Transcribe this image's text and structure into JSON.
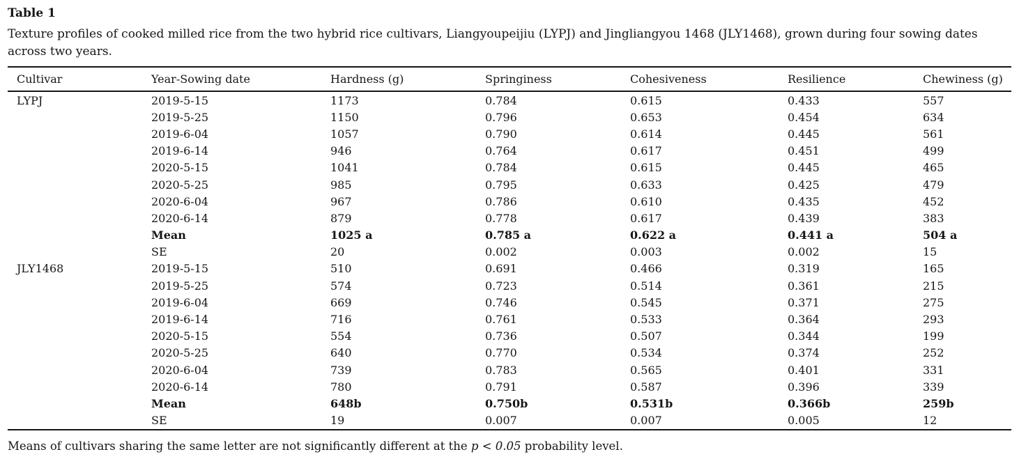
{
  "page": {
    "title": "Table 1",
    "caption_lines": [
      "Texture profiles of cooked milled rice from the two hybrid rice cultivars, Liangyoupeijiu (LYPJ) and Jingliangyou 1468 (JLY1468), grown during four sowing dates",
      "across two years."
    ],
    "footnote": {
      "prefix": "Means of cultivars sharing the same letter are not significantly different at the ",
      "italic": "p < 0.05",
      "suffix": " probability level."
    }
  },
  "table": {
    "columns": [
      "Cultivar",
      "Year-Sowing date",
      "Hardness (g)",
      "Springiness",
      "Cohesiveness",
      "Resilience",
      "Chewiness (g)"
    ],
    "rows": [
      {
        "cells": [
          "LYPJ",
          "2019-5-15",
          "1173",
          "0.784",
          "0.615",
          "0.433",
          "557"
        ],
        "bold": false
      },
      {
        "cells": [
          "",
          "2019-5-25",
          "1150",
          "0.796",
          "0.653",
          "0.454",
          "634"
        ],
        "bold": false
      },
      {
        "cells": [
          "",
          "2019-6-04",
          "1057",
          "0.790",
          "0.614",
          "0.445",
          "561"
        ],
        "bold": false
      },
      {
        "cells": [
          "",
          "2019-6-14",
          "946",
          "0.764",
          "0.617",
          "0.451",
          "499"
        ],
        "bold": false
      },
      {
        "cells": [
          "",
          "2020-5-15",
          "1041",
          "0.784",
          "0.615",
          "0.445",
          "465"
        ],
        "bold": false
      },
      {
        "cells": [
          "",
          "2020-5-25",
          "985",
          "0.795",
          "0.633",
          "0.425",
          "479"
        ],
        "bold": false
      },
      {
        "cells": [
          "",
          "2020-6-04",
          "967",
          "0.786",
          "0.610",
          "0.435",
          "452"
        ],
        "bold": false
      },
      {
        "cells": [
          "",
          "2020-6-14",
          "879",
          "0.778",
          "0.617",
          "0.439",
          "383"
        ],
        "bold": false
      },
      {
        "cells": [
          "",
          "Mean",
          "1025 a",
          "0.785 a",
          "0.622 a",
          "0.441 a",
          "504 a"
        ],
        "bold": true
      },
      {
        "cells": [
          "",
          "SE",
          "20",
          "0.002",
          "0.003",
          "0.002",
          "15"
        ],
        "bold": false
      },
      {
        "cells": [
          "JLY1468",
          "2019-5-15",
          "510",
          "0.691",
          "0.466",
          "0.319",
          "165"
        ],
        "bold": false
      },
      {
        "cells": [
          "",
          "2019-5-25",
          "574",
          "0.723",
          "0.514",
          "0.361",
          "215"
        ],
        "bold": false
      },
      {
        "cells": [
          "",
          "2019-6-04",
          "669",
          "0.746",
          "0.545",
          "0.371",
          "275"
        ],
        "bold": false
      },
      {
        "cells": [
          "",
          "2019-6-14",
          "716",
          "0.761",
          "0.533",
          "0.364",
          "293"
        ],
        "bold": false
      },
      {
        "cells": [
          "",
          "2020-5-15",
          "554",
          "0.736",
          "0.507",
          "0.344",
          "199"
        ],
        "bold": false
      },
      {
        "cells": [
          "",
          "2020-5-25",
          "640",
          "0.770",
          "0.534",
          "0.374",
          "252"
        ],
        "bold": false
      },
      {
        "cells": [
          "",
          "2020-6-04",
          "739",
          "0.783",
          "0.565",
          "0.401",
          "331"
        ],
        "bold": false
      },
      {
        "cells": [
          "",
          "2020-6-14",
          "780",
          "0.791",
          "0.587",
          "0.396",
          "339"
        ],
        "bold": false
      },
      {
        "cells": [
          "",
          "Mean",
          "648b",
          "0.750b",
          "0.531b",
          "0.366b",
          "259b"
        ],
        "bold": true
      },
      {
        "cells": [
          "",
          "SE",
          "19",
          "0.007",
          "0.007",
          "0.005",
          "12"
        ],
        "bold": false
      }
    ]
  }
}
